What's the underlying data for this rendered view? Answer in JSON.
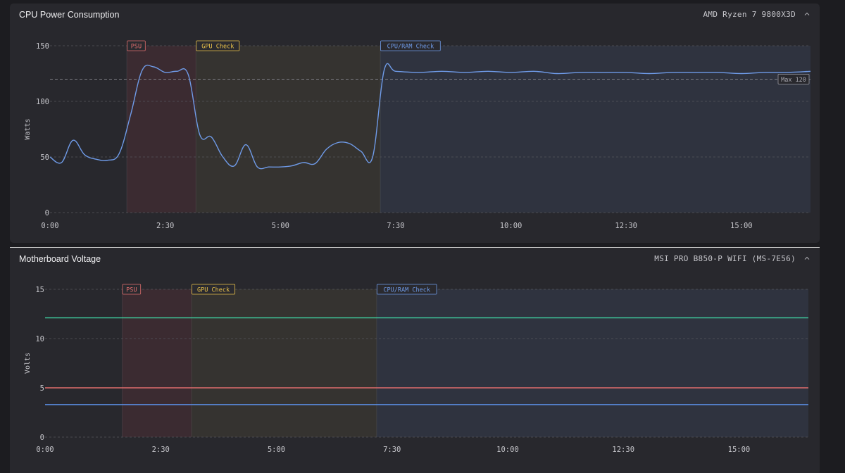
{
  "panels": {
    "cpu": {
      "title": "CPU Power Consumption",
      "device": "AMD Ryzen 7 9800X3D"
    },
    "mb": {
      "title": "Motherboard Voltage",
      "device": "MSI PRO B850-P WIFI (MS-7E56)"
    }
  },
  "icons": {
    "collapse": "chevron-up-icon"
  },
  "colors": {
    "psu": "#e06d6d",
    "gpu": "#e8c14a",
    "cpu_ram": "#6f9be8",
    "cpu_line": "#6f9be8",
    "rail_12v": "#3fcf9f",
    "rail_5v": "#e06d6d",
    "rail_3v3": "#5b8fe6",
    "grid": "#55555c"
  },
  "chart_data": [
    {
      "id": "cpu-power",
      "type": "line",
      "title": "CPU Power Consumption",
      "ylabel": "Watts",
      "xlabel": "",
      "xlim": [
        "0:00",
        "16:30"
      ],
      "ylim": [
        0,
        150
      ],
      "grid": true,
      "x_ticks": [
        "0:00",
        "2:30",
        "5:00",
        "7:30",
        "10:00",
        "12:30",
        "15:00"
      ],
      "y_ticks": [
        "0",
        "50",
        "100",
        "150"
      ],
      "bands": [
        {
          "label": "PSU",
          "start": "1:40",
          "end": "3:10"
        },
        {
          "label": "GPU Check",
          "start": "3:10",
          "end": "7:10"
        },
        {
          "label": "CPU/RAM Check",
          "start": "7:10",
          "end": "16:30"
        }
      ],
      "reference_lines": [
        {
          "label": "Max 120",
          "value": 120
        }
      ],
      "series": [
        {
          "values": [
            [
              "0:00",
              50
            ],
            [
              "0:15",
              45
            ],
            [
              "0:30",
              65
            ],
            [
              "0:45",
              52
            ],
            [
              "1:00",
              48
            ],
            [
              "1:15",
              47
            ],
            [
              "1:30",
              53
            ],
            [
              "1:45",
              88
            ],
            [
              "2:00",
              128
            ],
            [
              "2:15",
              131
            ],
            [
              "2:30",
              126
            ],
            [
              "2:45",
              127
            ],
            [
              "3:00",
              124
            ],
            [
              "3:15",
              70
            ],
            [
              "3:30",
              68
            ],
            [
              "3:45",
              50
            ],
            [
              "4:00",
              42
            ],
            [
              "4:15",
              61
            ],
            [
              "4:30",
              41
            ],
            [
              "4:45",
              41
            ],
            [
              "5:00",
              41
            ],
            [
              "5:15",
              42
            ],
            [
              "5:30",
              45
            ],
            [
              "5:45",
              44
            ],
            [
              "6:00",
              57
            ],
            [
              "6:15",
              63
            ],
            [
              "6:30",
              62
            ],
            [
              "6:45",
              55
            ],
            [
              "7:00",
              50
            ],
            [
              "7:15",
              128
            ],
            [
              "7:30",
              127
            ],
            [
              "8:00",
              126
            ],
            [
              "8:30",
              127
            ],
            [
              "9:00",
              126
            ],
            [
              "9:30",
              127
            ],
            [
              "10:00",
              126
            ],
            [
              "10:30",
              127
            ],
            [
              "11:00",
              125
            ],
            [
              "11:30",
              126
            ],
            [
              "12:00",
              126
            ],
            [
              "12:30",
              126
            ],
            [
              "13:00",
              125
            ],
            [
              "13:30",
              126
            ],
            [
              "14:00",
              126
            ],
            [
              "14:30",
              126
            ],
            [
              "15:00",
              125
            ],
            [
              "15:30",
              126
            ],
            [
              "16:00",
              126
            ],
            [
              "16:30",
              127
            ]
          ]
        }
      ]
    },
    {
      "id": "mb-voltage",
      "type": "line",
      "title": "Motherboard Voltage",
      "ylabel": "Volts",
      "xlabel": "",
      "xlim": [
        "0:00",
        "16:30"
      ],
      "ylim": [
        0,
        15
      ],
      "grid": true,
      "x_ticks": [
        "0:00",
        "2:30",
        "5:00",
        "7:30",
        "10:00",
        "12:30",
        "15:00"
      ],
      "y_ticks": [
        "0",
        "5",
        "10",
        "15"
      ],
      "bands": [
        {
          "label": "PSU",
          "start": "1:40",
          "end": "3:10"
        },
        {
          "label": "GPU Check",
          "start": "3:10",
          "end": "7:10"
        },
        {
          "label": "CPU/RAM Check",
          "start": "7:10",
          "end": "16:30"
        }
      ],
      "series": [
        {
          "color_key": "rail_12v",
          "values": [
            [
              "0:00",
              12.1
            ],
            [
              "16:30",
              12.1
            ]
          ]
        },
        {
          "color_key": "rail_5v",
          "values": [
            [
              "0:00",
              5.0
            ],
            [
              "16:30",
              5.0
            ]
          ]
        },
        {
          "color_key": "rail_3v3",
          "values": [
            [
              "0:00",
              3.3
            ],
            [
              "16:30",
              3.3
            ]
          ]
        }
      ]
    }
  ]
}
